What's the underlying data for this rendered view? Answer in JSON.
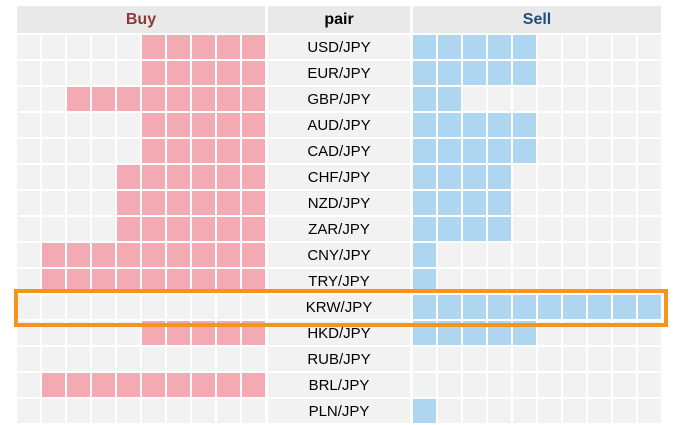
{
  "headers": {
    "buy": "Buy",
    "pair": "pair",
    "sell": "Sell"
  },
  "colors": {
    "buy_header": "#8b3a3a",
    "sell_header": "#1f4e79",
    "buy_fill": "#f4aab3",
    "sell_fill": "#aed6f1",
    "empty": "#f2f2f2",
    "highlight": "#f7941d"
  },
  "max_cells": 10,
  "highlighted_pair": "KRW/JPY",
  "rows": [
    {
      "pair": "USD/JPY",
      "buy": 5,
      "sell": 5
    },
    {
      "pair": "EUR/JPY",
      "buy": 5,
      "sell": 5
    },
    {
      "pair": "GBP/JPY",
      "buy": 8,
      "sell": 2
    },
    {
      "pair": "AUD/JPY",
      "buy": 5,
      "sell": 5
    },
    {
      "pair": "CAD/JPY",
      "buy": 5,
      "sell": 5
    },
    {
      "pair": "CHF/JPY",
      "buy": 6,
      "sell": 4
    },
    {
      "pair": "NZD/JPY",
      "buy": 6,
      "sell": 4
    },
    {
      "pair": "ZAR/JPY",
      "buy": 6,
      "sell": 4
    },
    {
      "pair": "CNY/JPY",
      "buy": 9,
      "sell": 1
    },
    {
      "pair": "TRY/JPY",
      "buy": 9,
      "sell": 1
    },
    {
      "pair": "KRW/JPY",
      "buy": 0,
      "sell": 10
    },
    {
      "pair": "HKD/JPY",
      "buy": 5,
      "sell": 5
    },
    {
      "pair": "RUB/JPY",
      "buy": 0,
      "sell": 0
    },
    {
      "pair": "BRL/JPY",
      "buy": 9,
      "sell": 0
    },
    {
      "pair": "PLN/JPY",
      "buy": 0,
      "sell": 1
    }
  ]
}
